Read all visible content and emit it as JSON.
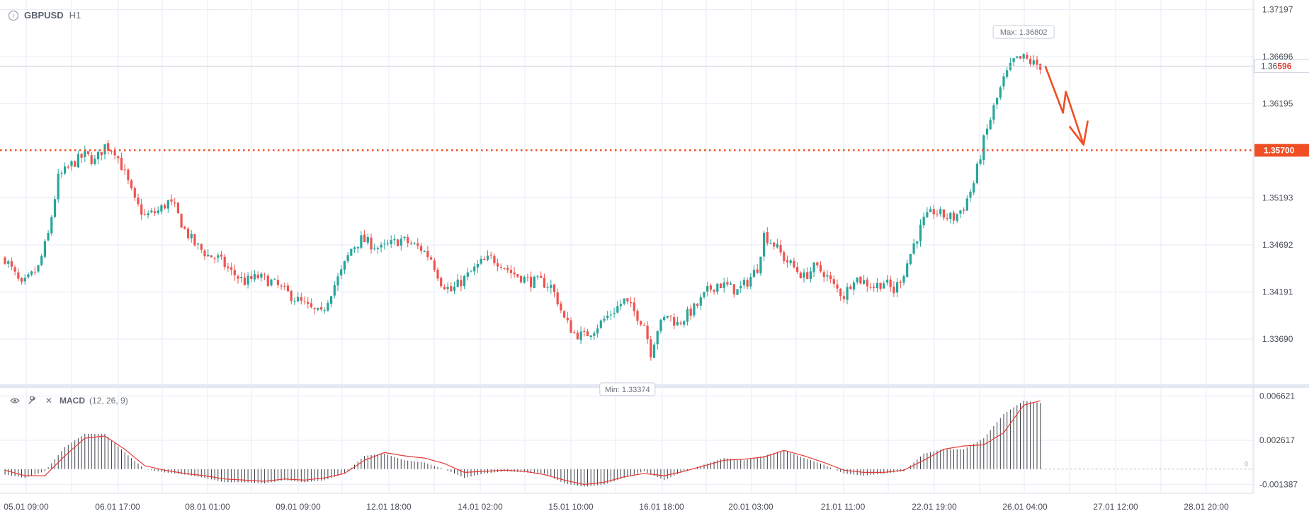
{
  "header": {
    "symbol": "GBPUSD",
    "timeframe": "H1"
  },
  "indicator": {
    "name": "MACD",
    "params": "(12, 26, 9)"
  },
  "colors": {
    "up": "#26a69a",
    "down": "#ef5350",
    "level": "#f04e23",
    "grid": "#e6ebf5",
    "text": "#4a4f57"
  },
  "chart_data": {
    "type": "candlestick",
    "title": "GBPUSD H1",
    "price_axis": {
      "ticks": [
        "1.37197",
        "1.36696",
        "1.36195",
        "1.35193",
        "1.34692",
        "1.34191",
        "1.33690"
      ],
      "ylim": [
        1.3323,
        1.3727
      ]
    },
    "time_axis": {
      "labels": [
        "05.01 09:00",
        "06.01 17:00",
        "08.01 01:00",
        "09.01 09:00",
        "12.01 18:00",
        "14.01 02:00",
        "15.01 10:00",
        "16.01 18:00",
        "20.01 03:00",
        "21.01 11:00",
        "22.01 19:00",
        "26.01 04:00",
        "27.01 12:00",
        "28.01 20:00"
      ]
    },
    "current_price": {
      "prefix": "1.36",
      "suffix": "596",
      "value": 1.36596
    },
    "level": {
      "label": "1.35700",
      "value": 1.357
    },
    "max_label": "Max: 1.36802",
    "min_label": "Min: 1.33374",
    "price_path": [
      [
        0,
        1.3455
      ],
      [
        5,
        1.3425
      ],
      [
        10,
        1.3445
      ],
      [
        13,
        1.348
      ],
      [
        16,
        1.354
      ],
      [
        20,
        1.3555
      ],
      [
        24,
        1.3565
      ],
      [
        27,
        1.3558
      ],
      [
        30,
        1.3575
      ],
      [
        33,
        1.357
      ],
      [
        36,
        1.3545
      ],
      [
        39,
        1.3515
      ],
      [
        42,
        1.35
      ],
      [
        46,
        1.3505
      ],
      [
        49,
        1.3515
      ],
      [
        51,
        1.3508
      ],
      [
        54,
        1.3485
      ],
      [
        57,
        1.347
      ],
      [
        61,
        1.3458
      ],
      [
        64,
        1.3455
      ],
      [
        68,
        1.344
      ],
      [
        72,
        1.343
      ],
      [
        76,
        1.3435
      ],
      [
        80,
        1.343
      ],
      [
        84,
        1.342
      ],
      [
        88,
        1.341
      ],
      [
        92,
        1.34
      ],
      [
        95,
        1.3395
      ],
      [
        98,
        1.342
      ],
      [
        101,
        1.344
      ],
      [
        104,
        1.3465
      ],
      [
        107,
        1.3475
      ],
      [
        110,
        1.347
      ],
      [
        113,
        1.3465
      ],
      [
        116,
        1.347
      ],
      [
        119,
        1.3475
      ],
      [
        122,
        1.347
      ],
      [
        125,
        1.3465
      ],
      [
        128,
        1.3455
      ],
      [
        131,
        1.343
      ],
      [
        134,
        1.342
      ],
      [
        137,
        1.343
      ],
      [
        140,
        1.344
      ],
      [
        143,
        1.345
      ],
      [
        146,
        1.3455
      ],
      [
        149,
        1.345
      ],
      [
        152,
        1.344
      ],
      [
        155,
        1.3435
      ],
      [
        158,
        1.343
      ],
      [
        161,
        1.343
      ],
      [
        164,
        1.3425
      ],
      [
        166,
        1.341
      ],
      [
        168,
        1.339
      ],
      [
        171,
        1.3375
      ],
      [
        174,
        1.3372
      ],
      [
        177,
        1.338
      ],
      [
        180,
        1.339
      ],
      [
        183,
        1.34
      ],
      [
        186,
        1.341
      ],
      [
        189,
        1.3398
      ],
      [
        192,
        1.3385
      ],
      [
        194,
        1.3355
      ],
      [
        196,
        1.338
      ],
      [
        199,
        1.3395
      ],
      [
        202,
        1.3385
      ],
      [
        205,
        1.3395
      ],
      [
        208,
        1.3405
      ],
      [
        211,
        1.342
      ],
      [
        214,
        1.3428
      ],
      [
        217,
        1.3425
      ],
      [
        220,
        1.342
      ],
      [
        223,
        1.343
      ],
      [
        226,
        1.3445
      ],
      [
        228,
        1.348
      ],
      [
        231,
        1.347
      ],
      [
        234,
        1.3455
      ],
      [
        237,
        1.3445
      ],
      [
        240,
        1.3435
      ],
      [
        243,
        1.3445
      ],
      [
        246,
        1.344
      ],
      [
        249,
        1.3425
      ],
      [
        252,
        1.3415
      ],
      [
        255,
        1.3435
      ],
      [
        258,
        1.343
      ],
      [
        261,
        1.3425
      ],
      [
        264,
        1.343
      ],
      [
        267,
        1.342
      ],
      [
        270,
        1.344
      ],
      [
        273,
        1.347
      ],
      [
        276,
        1.3495
      ],
      [
        279,
        1.3505
      ],
      [
        282,
        1.35
      ],
      [
        285,
        1.3498
      ],
      [
        288,
        1.351
      ],
      [
        291,
        1.3535
      ],
      [
        294,
        1.358
      ],
      [
        297,
        1.3615
      ],
      [
        300,
        1.3645
      ],
      [
        303,
        1.3665
      ],
      [
        306,
        1.3668
      ],
      [
        309,
        1.3662
      ],
      [
        311,
        1.366
      ]
    ],
    "macd": {
      "ylim": [
        -0.0022,
        0.0073
      ],
      "ticks": [
        "0.006621",
        "0.002617",
        "-0.001387"
      ],
      "zero_label": "0",
      "hist": [
        [
          0,
          -0.0005
        ],
        [
          6,
          -0.0008
        ],
        [
          12,
          -0.0002
        ],
        [
          18,
          0.002
        ],
        [
          24,
          0.0032
        ],
        [
          30,
          0.0032
        ],
        [
          36,
          0.0015
        ],
        [
          42,
          0.0
        ],
        [
          48,
          -0.0003
        ],
        [
          54,
          -0.0005
        ],
        [
          60,
          -0.0008
        ],
        [
          66,
          -0.0012
        ],
        [
          72,
          -0.0012
        ],
        [
          78,
          -0.0013
        ],
        [
          84,
          -0.001
        ],
        [
          90,
          -0.0012
        ],
        [
          96,
          -0.001
        ],
        [
          102,
          -0.0004
        ],
        [
          108,
          0.0012
        ],
        [
          114,
          0.0014
        ],
        [
          120,
          0.0008
        ],
        [
          126,
          0.0006
        ],
        [
          132,
          0.0
        ],
        [
          138,
          -0.0008
        ],
        [
          144,
          -0.0004
        ],
        [
          150,
          -0.0002
        ],
        [
          156,
          -0.0003
        ],
        [
          162,
          -0.0004
        ],
        [
          168,
          -0.0013
        ],
        [
          174,
          -0.0016
        ],
        [
          180,
          -0.0014
        ],
        [
          186,
          -0.0008
        ],
        [
          192,
          -0.0002
        ],
        [
          198,
          -0.001
        ],
        [
          204,
          -0.0002
        ],
        [
          210,
          0.0004
        ],
        [
          216,
          0.001
        ],
        [
          222,
          0.0008
        ],
        [
          228,
          0.0012
        ],
        [
          234,
          0.0017
        ],
        [
          240,
          0.001
        ],
        [
          246,
          0.0004
        ],
        [
          252,
          -0.0004
        ],
        [
          258,
          -0.0006
        ],
        [
          264,
          -0.0004
        ],
        [
          270,
          -0.0002
        ],
        [
          276,
          0.0014
        ],
        [
          282,
          0.0018
        ],
        [
          288,
          0.0018
        ],
        [
          294,
          0.0028
        ],
        [
          300,
          0.005
        ],
        [
          306,
          0.0062
        ],
        [
          311,
          0.006
        ]
      ],
      "signal": [
        [
          0,
          -0.0001
        ],
        [
          6,
          -0.0006
        ],
        [
          12,
          -0.0006
        ],
        [
          18,
          0.0012
        ],
        [
          24,
          0.0028
        ],
        [
          30,
          0.003
        ],
        [
          36,
          0.0018
        ],
        [
          42,
          0.0003
        ],
        [
          48,
          -0.0001
        ],
        [
          54,
          -0.0004
        ],
        [
          60,
          -0.0006
        ],
        [
          66,
          -0.0009
        ],
        [
          72,
          -0.001
        ],
        [
          78,
          -0.0011
        ],
        [
          84,
          -0.0009
        ],
        [
          90,
          -0.001
        ],
        [
          96,
          -0.0008
        ],
        [
          102,
          -0.0004
        ],
        [
          108,
          0.0008
        ],
        [
          114,
          0.0015
        ],
        [
          120,
          0.0012
        ],
        [
          126,
          0.001
        ],
        [
          132,
          0.0005
        ],
        [
          138,
          -0.0003
        ],
        [
          144,
          -0.0002
        ],
        [
          150,
          -0.0001
        ],
        [
          156,
          -0.0002
        ],
        [
          162,
          -0.0005
        ],
        [
          168,
          -0.001
        ],
        [
          174,
          -0.0014
        ],
        [
          180,
          -0.0012
        ],
        [
          186,
          -0.0007
        ],
        [
          192,
          -0.0004
        ],
        [
          198,
          -0.0006
        ],
        [
          204,
          -0.0002
        ],
        [
          210,
          0.0003
        ],
        [
          216,
          0.0008
        ],
        [
          222,
          0.0009
        ],
        [
          228,
          0.0011
        ],
        [
          234,
          0.0017
        ],
        [
          240,
          0.0012
        ],
        [
          246,
          0.0006
        ],
        [
          252,
          -0.0001
        ],
        [
          258,
          -0.0003
        ],
        [
          264,
          -0.0003
        ],
        [
          270,
          -0.0001
        ],
        [
          276,
          0.0008
        ],
        [
          282,
          0.0018
        ],
        [
          288,
          0.0021
        ],
        [
          294,
          0.0022
        ],
        [
          300,
          0.0033
        ],
        [
          306,
          0.0058
        ],
        [
          311,
          0.0062
        ]
      ]
    }
  }
}
